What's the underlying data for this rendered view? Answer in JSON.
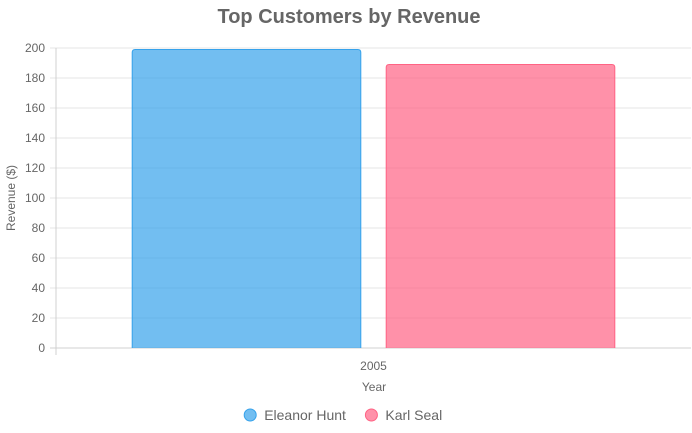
{
  "chart_data": {
    "type": "bar",
    "title": "Top Customers by Revenue",
    "xlabel": "Year",
    "ylabel": "Revenue ($)",
    "categories": [
      "2005"
    ],
    "ylim": [
      0,
      200
    ],
    "yticks": [
      0,
      20,
      40,
      60,
      80,
      100,
      120,
      140,
      160,
      180,
      200
    ],
    "grid": true,
    "legend_position": "bottom",
    "series": [
      {
        "name": "Eleanor Hunt",
        "values": [
          199
        ],
        "color": "#36a2eb",
        "fill": "rgba(54,162,235,0.7)"
      },
      {
        "name": "Karl Seal",
        "values": [
          189
        ],
        "color": "#ff6384",
        "fill": "rgba(255,99,132,0.7)"
      }
    ]
  }
}
